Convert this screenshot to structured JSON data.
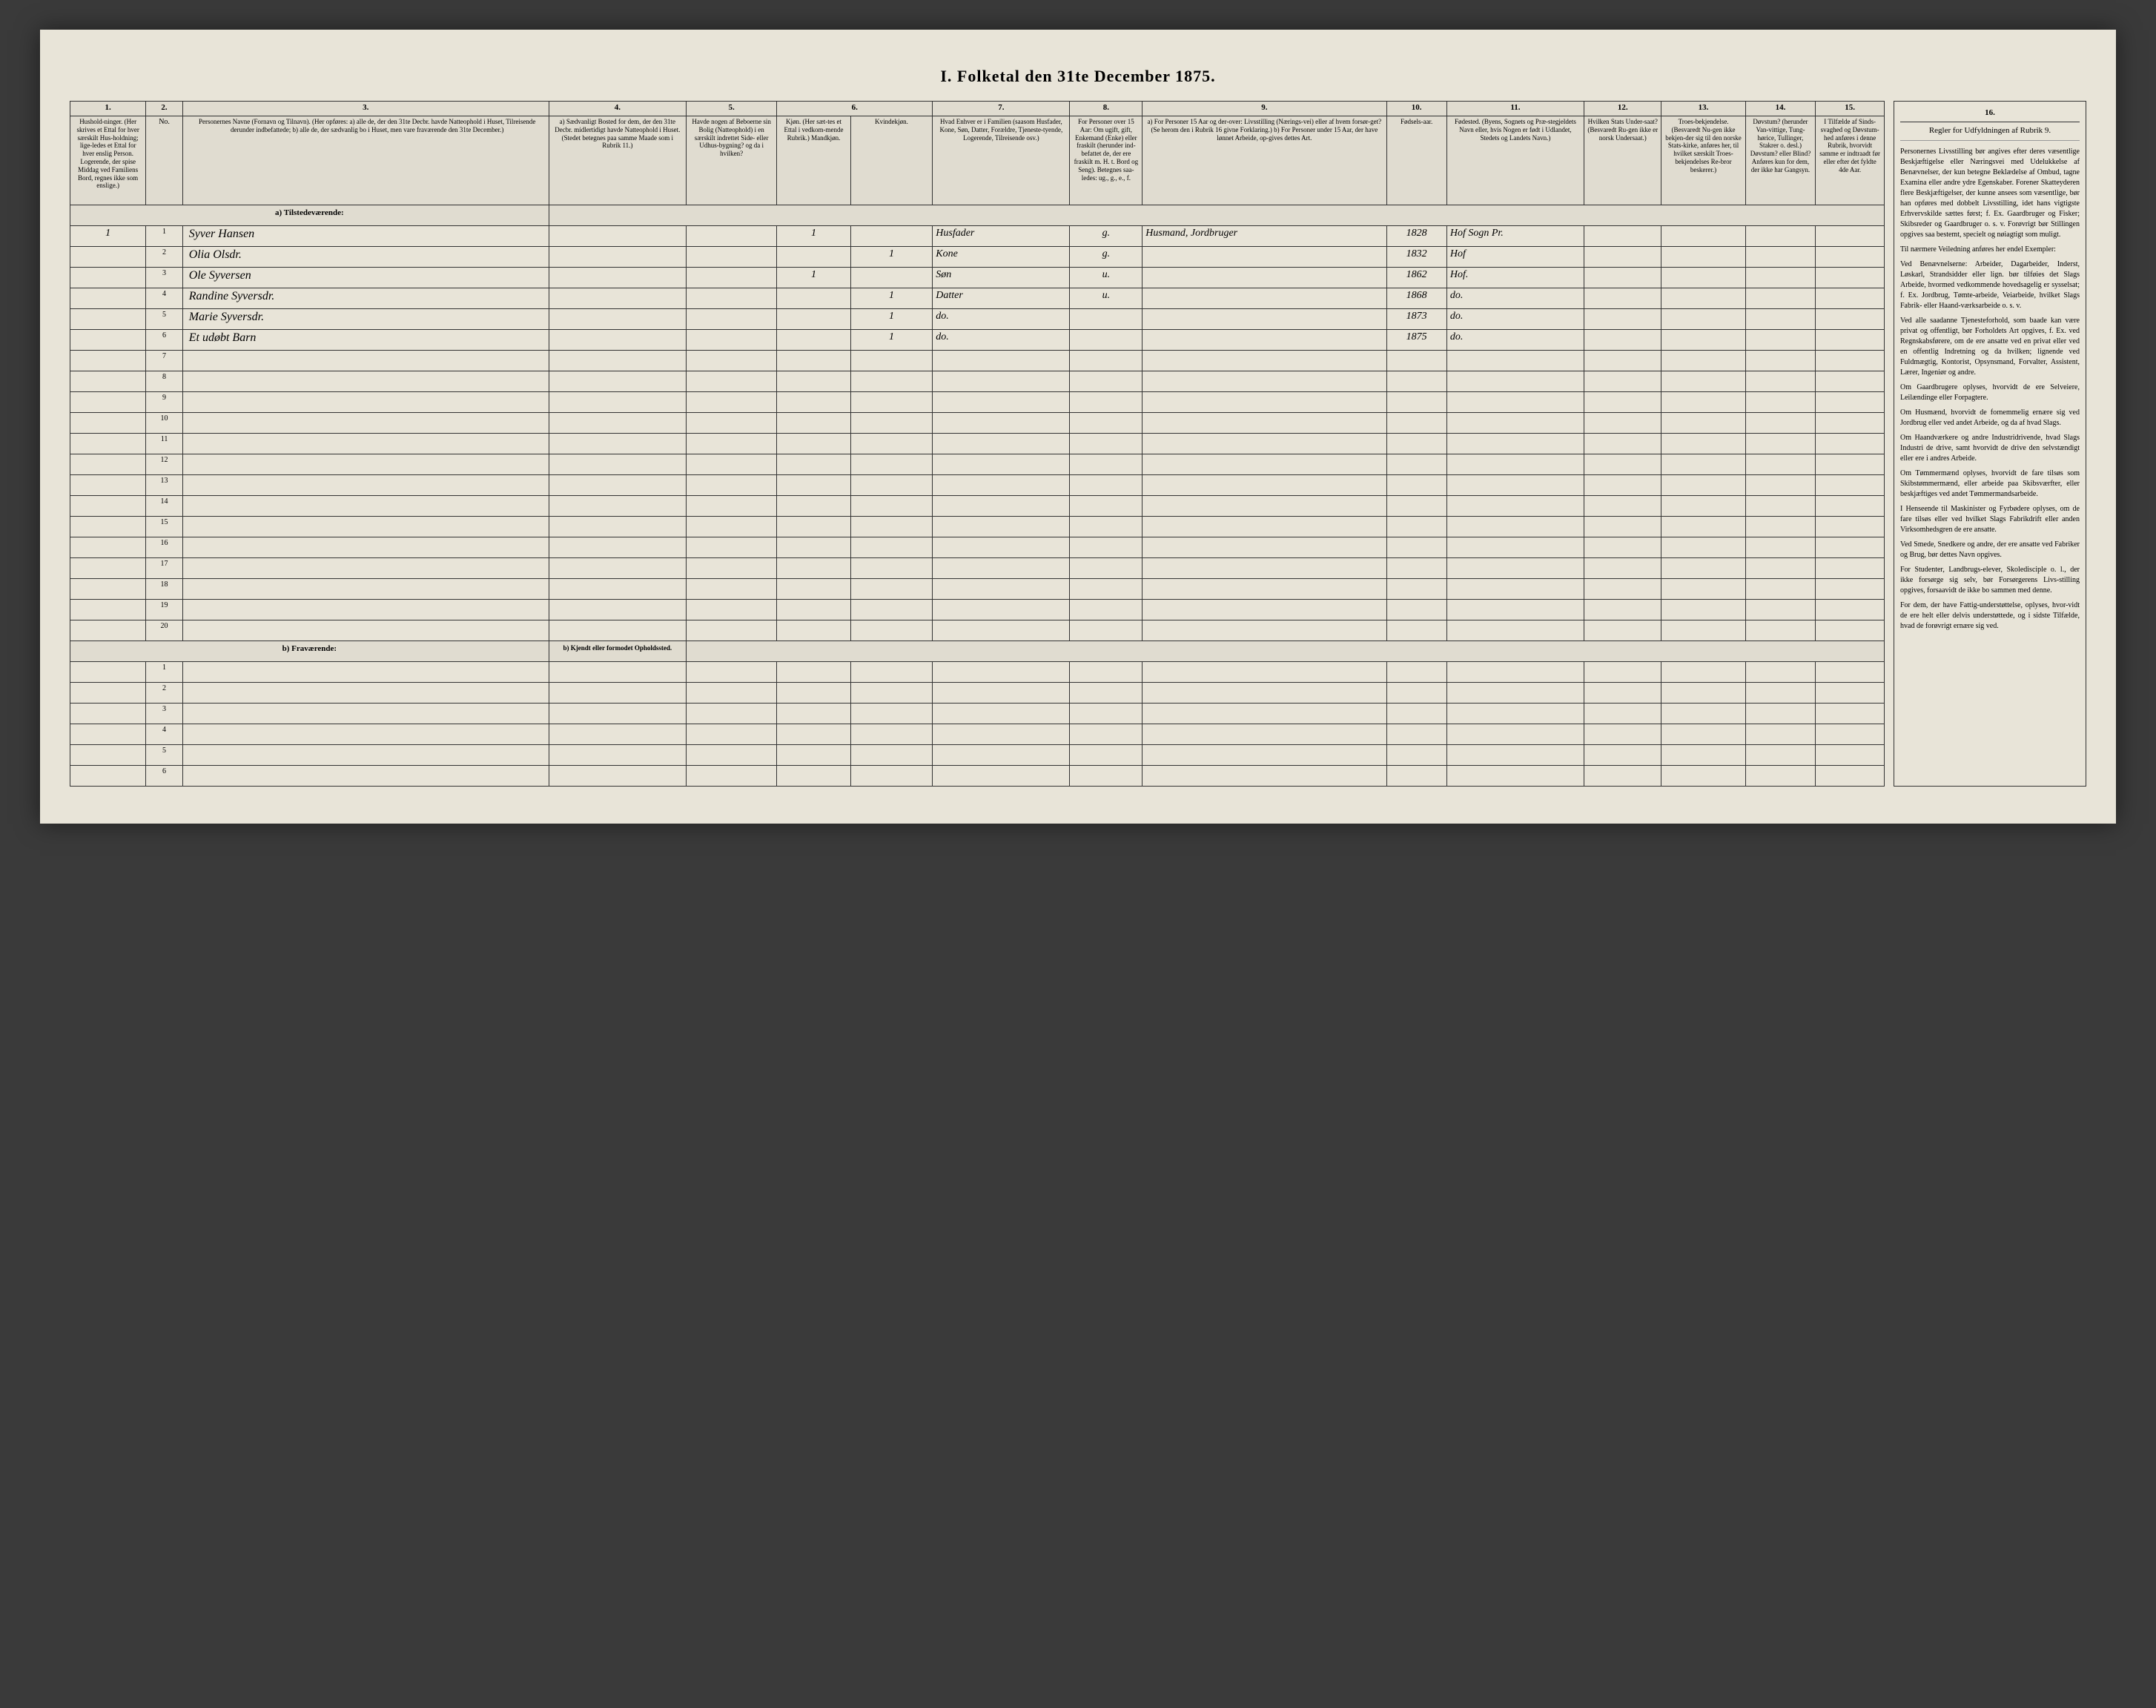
{
  "title": "I. Folketal den 31te December 1875.",
  "column_numbers": [
    "1.",
    "2.",
    "3.",
    "4.",
    "5.",
    "6.",
    "7.",
    "8.",
    "9.",
    "10.",
    "11.",
    "12.",
    "13.",
    "14.",
    "15.",
    "16."
  ],
  "headers": {
    "col1": "Hushold-ninger. (Her skrives et Ettal for hver særskilt Hus-holdning; lige-ledes et Ettal for hver enslig Person. Logerende, der spise Middag ved Familiens Bord, regnes ikke som enslige.)",
    "col2": "No.",
    "col3": "Personernes Navne (Fornavn og Tilnavn). (Her opføres: a) alle de, der den 31te Decbr. havde Natteophold i Huset, Tilreisende derunder indbefattede; b) alle de, der sædvanlig bo i Huset, men vare fraværende den 31te December.)",
    "col4": "a) Sædvanligt Bosted for dem, der den 31te Decbr. midlertidigt havde Natteophold i Huset. (Stedet betegnes paa samme Maade som i Rubrik 11.)",
    "col5": "Havde nogen af Beboerne sin Bolig (Natteophold) i en særskilt indrettet Side- eller Udhus-bygning? og da i hvilken?",
    "col6a": "Kjøn. (Her sæt-tes et Ettal i vedkom-mende Rubrik.) Mandkjøn.",
    "col6b": "Kvindekjøn.",
    "col7": "Hvad Enhver er i Familien (saasom Husfader, Kone, Søn, Datter, Forældre, Tjeneste-tyende, Logerende, Tilreisende osv.)",
    "col8": "For Personer over 15 Aar: Om ugift, gift, Enkemand (Enke) eller fraskilt (herunder ind-befattet de, der ere fraskilt m. H. t. Bord og Seng). Betegnes saa-ledes: ug., g., e., f.",
    "col9": "a) For Personer 15 Aar og der-over: Livsstilling (Nærings-vei) eller af hvem forsør-get? (Se herom den i Rubrik 16 givne Forklaring.) b) For Personer under 15 Aar, der have lønnet Arbeide, op-gives dettes Art.",
    "col10": "Fødsels-aar.",
    "col11": "Fødested. (Byens, Sognets og Præ-stegjeldets Navn eller, hvis Nogen er født i Udlandet, Stedets og Landets Navn.)",
    "col12": "Hvilken Stats Under-saat? (Besvaredt Ru-gen ikke er norsk Undersaat.)",
    "col13": "Troes-bekjendelse. (Besvaredt Nu-gen ikke bekjen-der sig til den norske Stats-kirke, anføres her, til hvilket særskilt Troes-bekjendelses Re-bror beskerer.)",
    "col14": "Døvstum? (herunder Van-vittige, Tung-hørice, Tullinger, Stakrer o. desl.) Døvstum? eller Blind? Anføres kun for dem, der ikke har Gangsyn.",
    "col15": "I Tilfælde af Sinds-svaghed og Døvstum-hed anføres i denne Rubrik, hvorvidt samme er indtraadt før eller efter det fyldte 4de Aar.",
    "col16": "Regler for Udfyldningen af Rubrik 9."
  },
  "section_a": "a) Tilstedeværende:",
  "section_b": "b) Fraværende:",
  "section_b_col4": "b) Kjendt eller formodet Opholdssted.",
  "rows_a": [
    {
      "num": "1",
      "hh": "1",
      "name": "Syver Hansen",
      "m": "1",
      "k": "",
      "rel": "Husfader",
      "civ": "g.",
      "occ": "Husmand, Jordbruger",
      "year": "1828",
      "place": "Hof Sogn Pr."
    },
    {
      "num": "2",
      "hh": "",
      "name": "Olia Olsdr.",
      "m": "",
      "k": "1",
      "rel": "Kone",
      "civ": "g.",
      "occ": "",
      "year": "1832",
      "place": "Hof"
    },
    {
      "num": "3",
      "hh": "",
      "name": "Ole Syversen",
      "m": "1",
      "k": "",
      "rel": "Søn",
      "civ": "u.",
      "occ": "",
      "year": "1862",
      "place": "Hof."
    },
    {
      "num": "4",
      "hh": "",
      "name": "Randine Syversdr.",
      "m": "",
      "k": "1",
      "rel": "Datter",
      "civ": "u.",
      "occ": "",
      "year": "1868",
      "place": "do."
    },
    {
      "num": "5",
      "hh": "",
      "name": "Marie Syversdr.",
      "m": "",
      "k": "1",
      "rel": "do.",
      "civ": "",
      "occ": "",
      "year": "1873",
      "place": "do."
    },
    {
      "num": "6",
      "hh": "",
      "name": "Et udøbt Barn",
      "m": "",
      "k": "1",
      "rel": "do.",
      "civ": "",
      "occ": "",
      "year": "1875",
      "place": "do."
    }
  ],
  "empty_rows_a": [
    "7",
    "8",
    "9",
    "10",
    "11",
    "12",
    "13",
    "14",
    "15",
    "16",
    "17",
    "18",
    "19",
    "20"
  ],
  "empty_rows_b": [
    "1",
    "2",
    "3",
    "4",
    "5",
    "6"
  ],
  "rules_text": [
    "Personernes Livsstilling bør angives efter deres væsentlige Beskjæftigelse eller Næringsvei med Udelukkelse af Benævnelser, der kun betegne Beklædelse af Ombud, tagne Examina eller andre ydre Egenskaber. Forener Skatteyderen flere Beskjæftigelser, der kunne ansees som væsentlige, bør han opføres med dobbelt Livsstilling, idet hans vigtigste Erhvervskilde sættes først; f. Ex. Gaardbruger og Fisker; Skibsreder og Gaardbruger o. s. v. Forøvrigt bør Stillingen opgives saa bestemt, specielt og nøiagtigt som muligt.",
    "Til nærmere Veiledning anføres her endel Exempler:",
    "Ved Benævnelserne: Arbeider, Dagarbeider, Inderst, Løskarl, Strandsidder eller lign. bør tilføies det Slags Arbeide, hvormed vedkommende hovedsagelig er sysselsat; f. Ex. Jordbrug, Tømte-arbeide, Veiarbeide, hvilket Slags Fabrik- eller Haand-værksarbeide o. s. v.",
    "Ved alle saadanne Tjenesteforhold, som baade kan være privat og offentligt, bør Forholdets Art opgives, f. Ex. ved Regnskabsførere, om de ere ansatte ved en privat eller ved en offentlig Indretning og da hvilken; lignende ved Fuldmægtig, Kontorist, Opsynsmand, Forvalter, Assistent, Lærer, Ingeniør og andre.",
    "Om Gaardbrugere oplyses, hvorvidt de ere Selveiere, Leilændinge eller Forpagtere.",
    "Om Husmænd, hvorvidt de fornemmelig ernære sig ved Jordbrug eller ved andet Arbeide, og da af hvad Slags.",
    "Om Haandværkere og andre Industridrivende, hvad Slags Industri de drive, samt hvorvidt de drive den selvstændigt eller ere i andres Arbeide.",
    "Om Tømmermænd oplyses, hvorvidt de fare tilsøs som Skibstømmermænd, eller arbeide paa Skibsværfter, eller beskjæftiges ved andet Tømmermandsarbeide.",
    "I Henseende til Maskinister og Fyrbødere oplyses, om de fare tilsøs eller ved hvilket Slags Fabrikdrift eller anden Virksomhedsgren de ere ansatte.",
    "Ved Smede, Snedkere og andre, der ere ansatte ved Fabriker og Brug, bør dettes Navn opgives.",
    "For Studenter, Landbrugs-elever, Skoledisciple o. l., der ikke forsørge sig selv, bør Forsørgerens Livs-stilling opgives, forsaavidt de ikke bo sammen med denne.",
    "For dem, der have Fattig-understøttelse, oplyses, hvor-vidt de ere helt eller delvis understøttede, og i sidste Tilfælde, hvad de forøvrigt ernære sig ved."
  ],
  "styling": {
    "background": "#3a3a3a",
    "paper": "#e8e4d8",
    "border": "#333333",
    "header_bg": "#e0dcd0",
    "font_body": "Georgia, Times New Roman, serif",
    "font_script": "Brush Script MT, cursive"
  }
}
